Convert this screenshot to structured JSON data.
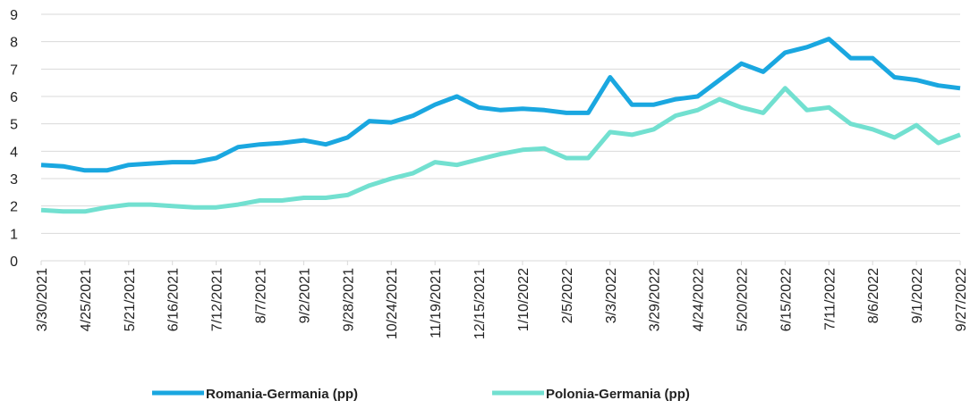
{
  "chart_data": {
    "type": "line",
    "x": [
      "3/30/2021",
      "4/12/2021",
      "4/25/2021",
      "5/8/2021",
      "5/21/2021",
      "6/3/2021",
      "6/16/2021",
      "6/29/2021",
      "7/12/2021",
      "7/25/2021",
      "8/7/2021",
      "8/20/2021",
      "9/2/2021",
      "9/15/2021",
      "9/28/2021",
      "10/11/2021",
      "10/24/2021",
      "11/6/2021",
      "11/19/2021",
      "12/2/2021",
      "12/15/2021",
      "12/28/2021",
      "1/10/2022",
      "1/23/2022",
      "2/5/2022",
      "2/18/2022",
      "3/3/2022",
      "3/16/2022",
      "3/29/2022",
      "4/11/2022",
      "4/24/2022",
      "5/7/2022",
      "5/20/2022",
      "6/2/2022",
      "6/15/2022",
      "6/28/2022",
      "7/11/2022",
      "7/24/2022",
      "8/6/2022",
      "8/19/2022",
      "9/1/2022",
      "9/14/2022",
      "9/27/2022"
    ],
    "series": [
      {
        "name": "Romania-Germania (pp)",
        "color": "#1aa7e0",
        "values": [
          3.5,
          3.45,
          3.3,
          3.3,
          3.5,
          3.55,
          3.6,
          3.6,
          3.75,
          4.15,
          4.25,
          4.3,
          4.4,
          4.25,
          4.5,
          5.1,
          5.05,
          5.3,
          5.7,
          6.0,
          5.6,
          5.5,
          5.55,
          5.5,
          5.4,
          5.4,
          6.7,
          5.7,
          5.7,
          5.9,
          6.0,
          6.6,
          7.2,
          6.9,
          7.6,
          7.8,
          8.1,
          7.4,
          7.4,
          6.7,
          6.6,
          6.4,
          6.3
        ]
      },
      {
        "name": "Polonia-Germania (pp)",
        "color": "#72e0d0",
        "values": [
          1.85,
          1.8,
          1.8,
          1.95,
          2.05,
          2.05,
          2.0,
          1.95,
          1.95,
          2.05,
          2.2,
          2.2,
          2.3,
          2.3,
          2.4,
          2.75,
          3.0,
          3.2,
          3.6,
          3.5,
          3.7,
          3.9,
          4.05,
          4.1,
          3.75,
          3.75,
          4.7,
          4.6,
          4.8,
          5.3,
          5.5,
          5.9,
          5.6,
          5.4,
          6.3,
          5.5,
          5.6,
          5.0,
          4.8,
          4.5,
          4.95,
          4.3,
          4.6
        ]
      }
    ],
    "xlim": [
      "3/30/2021",
      "9/27/2022"
    ],
    "xticks": [
      "3/30/2021",
      "4/25/2021",
      "5/21/2021",
      "6/16/2021",
      "7/12/2021",
      "8/7/2021",
      "9/2/2021",
      "9/28/2021",
      "10/24/2021",
      "11/19/2021",
      "12/15/2021",
      "1/10/2022",
      "2/5/2022",
      "3/3/2022",
      "3/29/2022",
      "4/24/2022",
      "5/20/2022",
      "6/15/2022",
      "7/11/2022",
      "8/6/2022",
      "9/1/2022",
      "9/27/2022"
    ],
    "ylim": [
      0,
      9
    ],
    "yticks": [
      0,
      1,
      2,
      3,
      4,
      5,
      6,
      7,
      8,
      9
    ],
    "grid": true,
    "legend": "bottom"
  }
}
